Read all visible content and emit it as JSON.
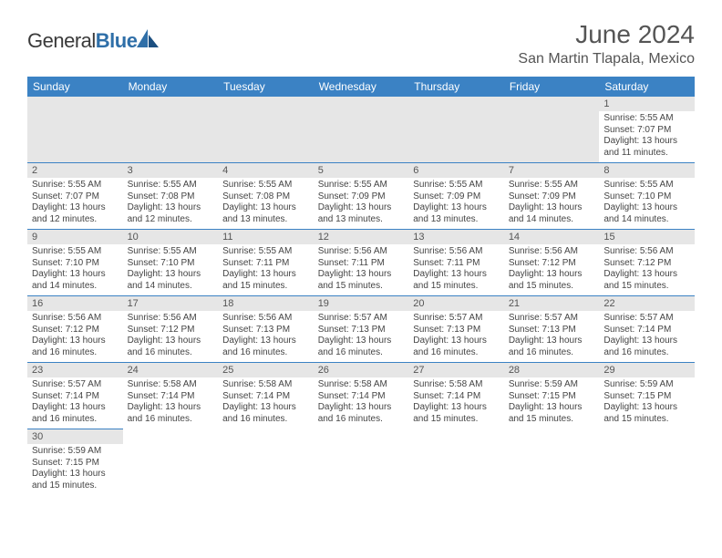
{
  "brand": {
    "general": "General",
    "blue": "Blue"
  },
  "header": {
    "month_title": "June 2024",
    "location": "San Martin Tlapala, Mexico"
  },
  "colors": {
    "header_bg": "#3b82c4",
    "header_text": "#ffffff",
    "daynum_bg": "#e6e6e6",
    "cell_border": "#3b82c4",
    "text": "#444444"
  },
  "daynames": [
    "Sunday",
    "Monday",
    "Tuesday",
    "Wednesday",
    "Thursday",
    "Friday",
    "Saturday"
  ],
  "weeks": [
    [
      null,
      null,
      null,
      null,
      null,
      null,
      {
        "n": "1",
        "sunrise": "Sunrise: 5:55 AM",
        "sunset": "Sunset: 7:07 PM",
        "daylight": "Daylight: 13 hours and 11 minutes."
      }
    ],
    [
      {
        "n": "2",
        "sunrise": "Sunrise: 5:55 AM",
        "sunset": "Sunset: 7:07 PM",
        "daylight": "Daylight: 13 hours and 12 minutes."
      },
      {
        "n": "3",
        "sunrise": "Sunrise: 5:55 AM",
        "sunset": "Sunset: 7:08 PM",
        "daylight": "Daylight: 13 hours and 12 minutes."
      },
      {
        "n": "4",
        "sunrise": "Sunrise: 5:55 AM",
        "sunset": "Sunset: 7:08 PM",
        "daylight": "Daylight: 13 hours and 13 minutes."
      },
      {
        "n": "5",
        "sunrise": "Sunrise: 5:55 AM",
        "sunset": "Sunset: 7:09 PM",
        "daylight": "Daylight: 13 hours and 13 minutes."
      },
      {
        "n": "6",
        "sunrise": "Sunrise: 5:55 AM",
        "sunset": "Sunset: 7:09 PM",
        "daylight": "Daylight: 13 hours and 13 minutes."
      },
      {
        "n": "7",
        "sunrise": "Sunrise: 5:55 AM",
        "sunset": "Sunset: 7:09 PM",
        "daylight": "Daylight: 13 hours and 14 minutes."
      },
      {
        "n": "8",
        "sunrise": "Sunrise: 5:55 AM",
        "sunset": "Sunset: 7:10 PM",
        "daylight": "Daylight: 13 hours and 14 minutes."
      }
    ],
    [
      {
        "n": "9",
        "sunrise": "Sunrise: 5:55 AM",
        "sunset": "Sunset: 7:10 PM",
        "daylight": "Daylight: 13 hours and 14 minutes."
      },
      {
        "n": "10",
        "sunrise": "Sunrise: 5:55 AM",
        "sunset": "Sunset: 7:10 PM",
        "daylight": "Daylight: 13 hours and 14 minutes."
      },
      {
        "n": "11",
        "sunrise": "Sunrise: 5:55 AM",
        "sunset": "Sunset: 7:11 PM",
        "daylight": "Daylight: 13 hours and 15 minutes."
      },
      {
        "n": "12",
        "sunrise": "Sunrise: 5:56 AM",
        "sunset": "Sunset: 7:11 PM",
        "daylight": "Daylight: 13 hours and 15 minutes."
      },
      {
        "n": "13",
        "sunrise": "Sunrise: 5:56 AM",
        "sunset": "Sunset: 7:11 PM",
        "daylight": "Daylight: 13 hours and 15 minutes."
      },
      {
        "n": "14",
        "sunrise": "Sunrise: 5:56 AM",
        "sunset": "Sunset: 7:12 PM",
        "daylight": "Daylight: 13 hours and 15 minutes."
      },
      {
        "n": "15",
        "sunrise": "Sunrise: 5:56 AM",
        "sunset": "Sunset: 7:12 PM",
        "daylight": "Daylight: 13 hours and 15 minutes."
      }
    ],
    [
      {
        "n": "16",
        "sunrise": "Sunrise: 5:56 AM",
        "sunset": "Sunset: 7:12 PM",
        "daylight": "Daylight: 13 hours and 16 minutes."
      },
      {
        "n": "17",
        "sunrise": "Sunrise: 5:56 AM",
        "sunset": "Sunset: 7:12 PM",
        "daylight": "Daylight: 13 hours and 16 minutes."
      },
      {
        "n": "18",
        "sunrise": "Sunrise: 5:56 AM",
        "sunset": "Sunset: 7:13 PM",
        "daylight": "Daylight: 13 hours and 16 minutes."
      },
      {
        "n": "19",
        "sunrise": "Sunrise: 5:57 AM",
        "sunset": "Sunset: 7:13 PM",
        "daylight": "Daylight: 13 hours and 16 minutes."
      },
      {
        "n": "20",
        "sunrise": "Sunrise: 5:57 AM",
        "sunset": "Sunset: 7:13 PM",
        "daylight": "Daylight: 13 hours and 16 minutes."
      },
      {
        "n": "21",
        "sunrise": "Sunrise: 5:57 AM",
        "sunset": "Sunset: 7:13 PM",
        "daylight": "Daylight: 13 hours and 16 minutes."
      },
      {
        "n": "22",
        "sunrise": "Sunrise: 5:57 AM",
        "sunset": "Sunset: 7:14 PM",
        "daylight": "Daylight: 13 hours and 16 minutes."
      }
    ],
    [
      {
        "n": "23",
        "sunrise": "Sunrise: 5:57 AM",
        "sunset": "Sunset: 7:14 PM",
        "daylight": "Daylight: 13 hours and 16 minutes."
      },
      {
        "n": "24",
        "sunrise": "Sunrise: 5:58 AM",
        "sunset": "Sunset: 7:14 PM",
        "daylight": "Daylight: 13 hours and 16 minutes."
      },
      {
        "n": "25",
        "sunrise": "Sunrise: 5:58 AM",
        "sunset": "Sunset: 7:14 PM",
        "daylight": "Daylight: 13 hours and 16 minutes."
      },
      {
        "n": "26",
        "sunrise": "Sunrise: 5:58 AM",
        "sunset": "Sunset: 7:14 PM",
        "daylight": "Daylight: 13 hours and 16 minutes."
      },
      {
        "n": "27",
        "sunrise": "Sunrise: 5:58 AM",
        "sunset": "Sunset: 7:14 PM",
        "daylight": "Daylight: 13 hours and 15 minutes."
      },
      {
        "n": "28",
        "sunrise": "Sunrise: 5:59 AM",
        "sunset": "Sunset: 7:15 PM",
        "daylight": "Daylight: 13 hours and 15 minutes."
      },
      {
        "n": "29",
        "sunrise": "Sunrise: 5:59 AM",
        "sunset": "Sunset: 7:15 PM",
        "daylight": "Daylight: 13 hours and 15 minutes."
      }
    ],
    [
      {
        "n": "30",
        "sunrise": "Sunrise: 5:59 AM",
        "sunset": "Sunset: 7:15 PM",
        "daylight": "Daylight: 13 hours and 15 minutes."
      },
      null,
      null,
      null,
      null,
      null,
      null
    ]
  ]
}
